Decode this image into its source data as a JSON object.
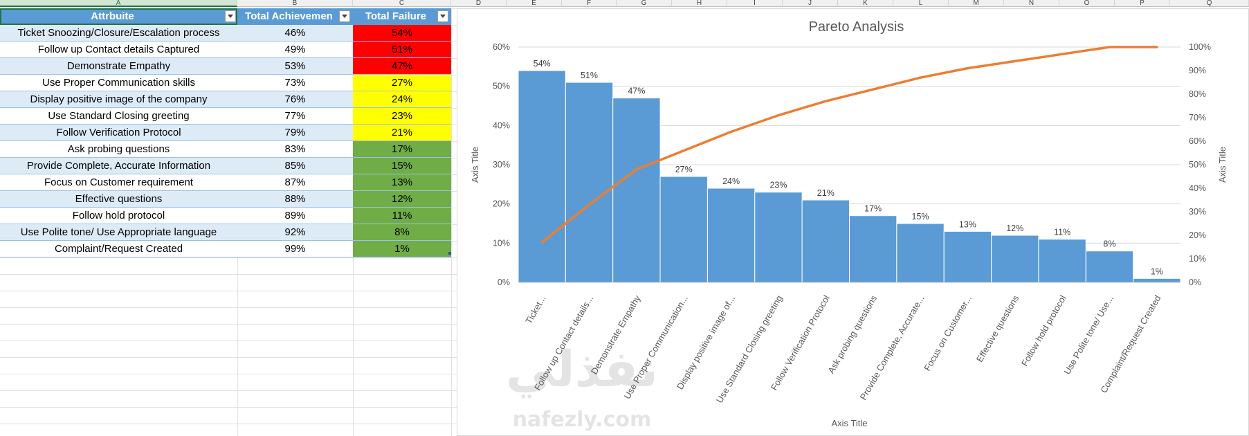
{
  "columns": [
    "A",
    "B",
    "C",
    "D",
    "E",
    "F",
    "G",
    "H",
    "I",
    "J",
    "K",
    "L",
    "M",
    "N",
    "O",
    "P",
    "Q"
  ],
  "table": {
    "headers": [
      "Attrbuite",
      "Total Achievemen",
      "Total Failure"
    ],
    "rows": [
      {
        "attr": "Ticket Snoozing/Closure/Escalation process",
        "ach": "46%",
        "fail": "54%",
        "level": "red"
      },
      {
        "attr": "Follow up Contact details Captured",
        "ach": "49%",
        "fail": "51%",
        "level": "red"
      },
      {
        "attr": "Demonstrate Empathy",
        "ach": "53%",
        "fail": "47%",
        "level": "red"
      },
      {
        "attr": "Use Proper Communication skills",
        "ach": "73%",
        "fail": "27%",
        "level": "yellow"
      },
      {
        "attr": "Display positive image of the company",
        "ach": "76%",
        "fail": "24%",
        "level": "yellow"
      },
      {
        "attr": "Use Standard Closing greeting",
        "ach": "77%",
        "fail": "23%",
        "level": "yellow"
      },
      {
        "attr": "Follow Verification Protocol",
        "ach": "79%",
        "fail": "21%",
        "level": "yellow"
      },
      {
        "attr": "Ask probing questions",
        "ach": "83%",
        "fail": "17%",
        "level": "green"
      },
      {
        "attr": "Provide Complete, Accurate Information",
        "ach": "85%",
        "fail": "15%",
        "level": "green"
      },
      {
        "attr": "Focus on Customer requirement",
        "ach": "87%",
        "fail": "13%",
        "level": "green"
      },
      {
        "attr": "Effective questions",
        "ach": "88%",
        "fail": "12%",
        "level": "green"
      },
      {
        "attr": "Follow hold protocol",
        "ach": "89%",
        "fail": "11%",
        "level": "green"
      },
      {
        "attr": "Use Polite tone/ Use Appropriate language",
        "ach": "92%",
        "fail": "8%",
        "level": "green"
      },
      {
        "attr": "Complaint/Request Created",
        "ach": "99%",
        "fail": "1%",
        "level": "green"
      }
    ]
  },
  "colors": {
    "header_fill": "#5b9bd5",
    "band": "#ddebf7",
    "red": "#ff0000",
    "yellow": "#ffff00",
    "green": "#70ad47",
    "bar": "#5b9bd5",
    "line": "#ed7d31",
    "gridline": "#d9d9d9"
  },
  "watermark": {
    "arabic": "نفذلي",
    "latin": "nafezly.com"
  },
  "chart_data": {
    "type": "bar",
    "title": "Pareto Analysis",
    "xlabel": "Axis Title",
    "ylabel": "Axis Title",
    "y2label": "Axis Title",
    "ylim": [
      0,
      0.6
    ],
    "y2lim": [
      0,
      1.0
    ],
    "y_ticks": [
      "0%",
      "10%",
      "20%",
      "30%",
      "40%",
      "50%",
      "60%"
    ],
    "y2_ticks": [
      "0%",
      "10%",
      "20%",
      "30%",
      "40%",
      "50%",
      "60%",
      "70%",
      "80%",
      "90%",
      "100%"
    ],
    "grid": true,
    "legend": "none",
    "categories": [
      "Ticket...",
      "Follow up Contact details...",
      "Demonstrate Empathy",
      "Use Proper Communication...",
      "Display positive image of...",
      "Use Standard Closing greeting",
      "Follow Verification Protocol",
      "Ask probing questions",
      "Provide Complete, Accurate...",
      "Focus on Customer...",
      "Effective questions",
      "Follow hold protocol",
      "Use Polite tone/ Use...",
      "Complaint/Request Created"
    ],
    "series": [
      {
        "type": "bar",
        "axis": "left",
        "values": [
          0.54,
          0.51,
          0.47,
          0.27,
          0.24,
          0.23,
          0.21,
          0.17,
          0.15,
          0.13,
          0.12,
          0.11,
          0.08,
          0.01
        ],
        "data_labels": [
          "54%",
          "51%",
          "47%",
          "27%",
          "24%",
          "23%",
          "21%",
          "17%",
          "15%",
          "13%",
          "12%",
          "11%",
          "8%",
          "1%"
        ]
      },
      {
        "type": "line",
        "axis": "right",
        "values": [
          0.17,
          0.33,
          0.48,
          0.56,
          0.64,
          0.71,
          0.77,
          0.82,
          0.87,
          0.91,
          0.94,
          0.97,
          1.0,
          1.0
        ]
      }
    ]
  }
}
